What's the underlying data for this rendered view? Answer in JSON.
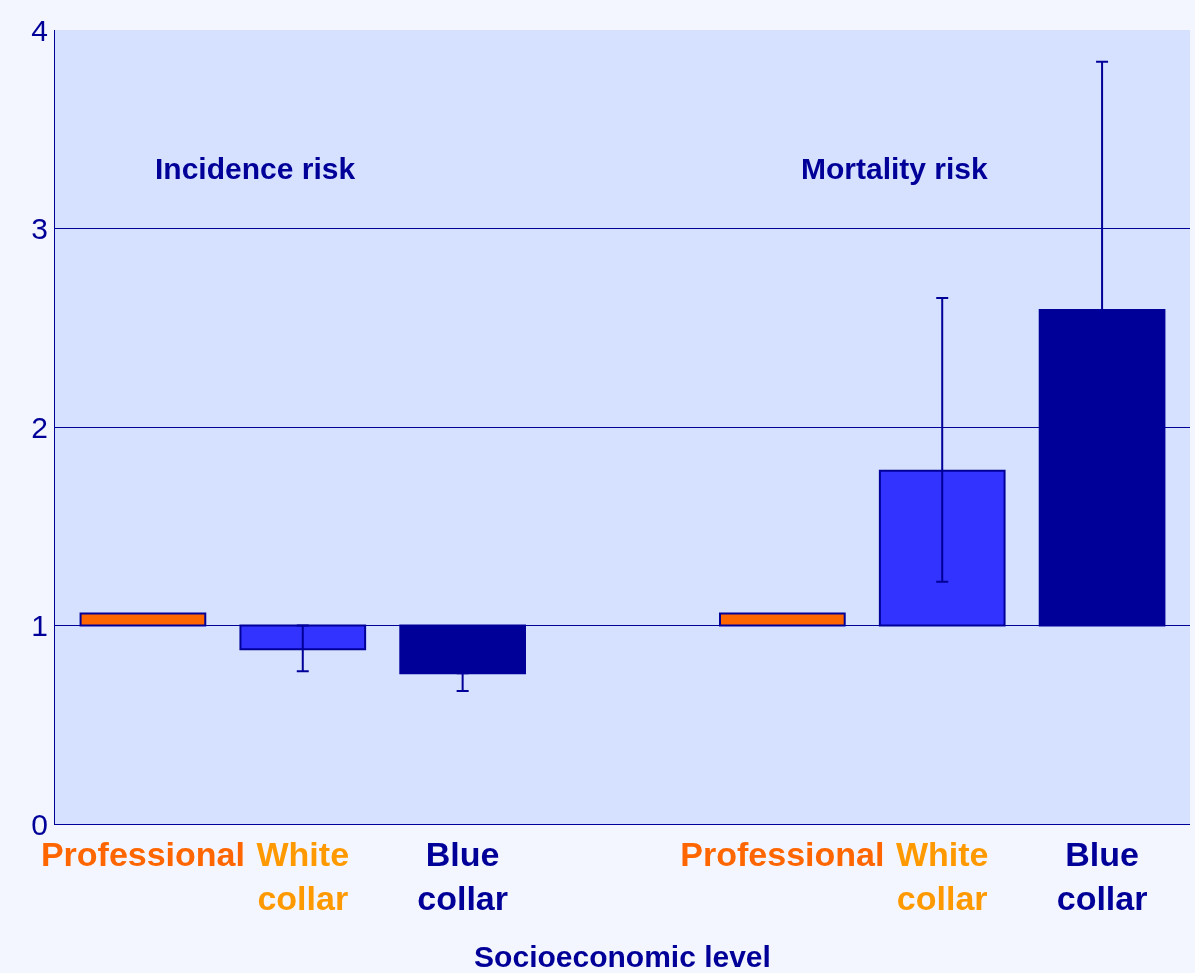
{
  "chart_data": {
    "type": "bar",
    "xlabel": "Socioeconomic level",
    "categories": [
      "Professional",
      "White collar",
      "Blue collar",
      null,
      "Professional",
      "White collar",
      "Blue collar"
    ],
    "base": [
      1,
      1,
      1,
      null,
      1,
      1,
      1
    ],
    "values": [
      0.06,
      -0.12,
      -0.24,
      null,
      0.06,
      0.78,
      1.59
    ],
    "colors": [
      "#ff6600",
      "#3333ff",
      "#000099",
      null,
      "#ff6600",
      "#3333ff",
      "#000099"
    ],
    "errors": [
      null,
      [
        0.77,
        1.0
      ],
      [
        0.67,
        0.76
      ],
      null,
      null,
      [
        1.22,
        2.65
      ],
      [
        2.59,
        3.84
      ]
    ],
    "annotations": [
      "Incidence risk",
      "Mortality risk"
    ],
    "ylim": [
      0,
      4
    ],
    "yticks": [
      0,
      1,
      2,
      3,
      4
    ],
    "grid": "y"
  }
}
